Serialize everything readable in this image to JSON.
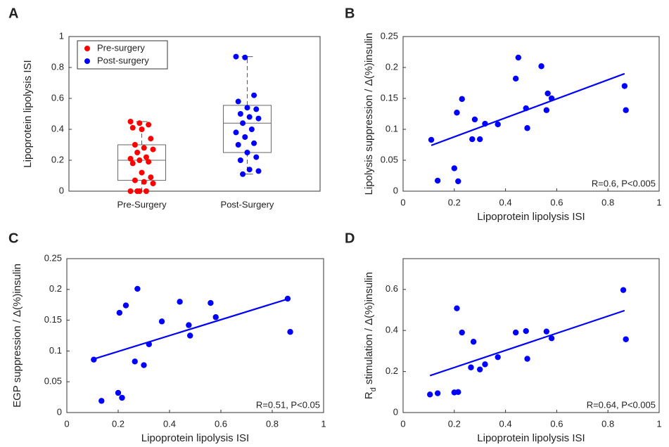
{
  "chart_data": [
    {
      "type": "box",
      "label": "A",
      "ylabel": "Lipoprotein lipolysis ISI",
      "categories": [
        "Pre-Surgery",
        "Post-Surgery"
      ],
      "ylim": [
        0,
        1
      ],
      "yticks": [
        0,
        0.2,
        0.4,
        0.6,
        0.8,
        1
      ],
      "legend": "upper-left",
      "series": [
        {
          "name": "Pre-surgery",
          "color": "#ff0000",
          "values": [
            0.45,
            0.44,
            0.43,
            0.41,
            0.4,
            0.34,
            0.3,
            0.28,
            0.27,
            0.25,
            0.22,
            0.21,
            0.2,
            0.19,
            0.18,
            0.12,
            0.09,
            0.07,
            0.06,
            0.05,
            0,
            0,
            0,
            0
          ],
          "box": {
            "min": 0,
            "q1": 0.07,
            "median": 0.2,
            "q3": 0.3,
            "max": 0.45
          }
        },
        {
          "name": "Post-surgery",
          "color": "#0000ff",
          "values": [
            0.87,
            0.865,
            0.62,
            0.58,
            0.54,
            0.53,
            0.5,
            0.48,
            0.47,
            0.44,
            0.4,
            0.38,
            0.35,
            0.31,
            0.3,
            0.25,
            0.22,
            0.2,
            0.14,
            0.13,
            0.11
          ],
          "box": {
            "min": 0.11,
            "q1": 0.25,
            "median": 0.44,
            "q3": 0.555,
            "max": 0.87
          }
        }
      ]
    },
    {
      "type": "scatter",
      "label": "B",
      "ylabel": "Lipolysis suppression / Δ(%)insulin",
      "xlabel": "Lipoprotein lipolysis ISI",
      "annotation": "R=0.6, P<0.005",
      "color": "#0000ff",
      "xlim": [
        0,
        1
      ],
      "xticks": [
        0,
        0.2,
        0.4,
        0.6,
        0.8,
        1
      ],
      "ylim": [
        0,
        0.25
      ],
      "yticks": [
        0,
        0.05,
        0.1,
        0.15,
        0.2,
        0.25
      ],
      "x": [
        0.11,
        0.135,
        0.2,
        0.21,
        0.215,
        0.23,
        0.27,
        0.28,
        0.3,
        0.32,
        0.37,
        0.44,
        0.45,
        0.48,
        0.485,
        0.54,
        0.56,
        0.565,
        0.58,
        0.865,
        0.87
      ],
      "values": [
        0.083,
        0.017,
        0.037,
        0.127,
        0.016,
        0.149,
        0.084,
        0.116,
        0.084,
        0.109,
        0.108,
        0.182,
        0.216,
        0.134,
        0.102,
        0.202,
        0.131,
        0.158,
        0.15,
        0.17,
        0.131
      ],
      "fit": {
        "x": [
          0.11,
          0.865
        ],
        "y": [
          0.074,
          0.19
        ]
      }
    },
    {
      "type": "scatter",
      "label": "C",
      "ylabel": "EGP suppression / Δ(%)insulin",
      "xlabel": "Lipoprotein lipolysis ISI",
      "annotation": "R=0.51, P<0.05",
      "color": "#0000ff",
      "xlim": [
        0,
        1
      ],
      "xticks": [
        0,
        0.2,
        0.4,
        0.6,
        0.8,
        1
      ],
      "ylim": [
        0,
        0.25
      ],
      "yticks": [
        0,
        0.05,
        0.1,
        0.15,
        0.2,
        0.25
      ],
      "x": [
        0.105,
        0.135,
        0.2,
        0.205,
        0.215,
        0.23,
        0.265,
        0.275,
        0.3,
        0.32,
        0.37,
        0.44,
        0.475,
        0.48,
        0.56,
        0.58,
        0.86,
        0.87
      ],
      "values": [
        0.086,
        0.019,
        0.032,
        0.162,
        0.024,
        0.174,
        0.083,
        0.201,
        0.077,
        0.111,
        0.148,
        0.18,
        0.142,
        0.125,
        0.178,
        0.155,
        0.185,
        0.131
      ],
      "fit": {
        "x": [
          0.105,
          0.865
        ],
        "y": [
          0.087,
          0.185
        ]
      }
    },
    {
      "type": "scatter",
      "label": "D",
      "ylabel": [
        {
          "text": "R"
        },
        {
          "text": "d",
          "sub": true
        },
        {
          "text": " stimulation / Δ(%)insulin"
        }
      ],
      "xlabel": "Lipoprotein lipolysis ISI",
      "annotation": "R=0.64, P<0.005",
      "color": "#0000ff",
      "xlim": [
        0,
        1
      ],
      "xticks": [
        0,
        0.2,
        0.4,
        0.6,
        0.8,
        1
      ],
      "ylim": [
        0,
        0.75
      ],
      "yticks": [
        0,
        0.2,
        0.4,
        0.6
      ],
      "x": [
        0.105,
        0.135,
        0.2,
        0.21,
        0.215,
        0.23,
        0.265,
        0.275,
        0.3,
        0.32,
        0.37,
        0.44,
        0.48,
        0.485,
        0.56,
        0.58,
        0.86,
        0.87
      ],
      "values": [
        0.088,
        0.094,
        0.098,
        0.508,
        0.1,
        0.39,
        0.22,
        0.345,
        0.21,
        0.235,
        0.27,
        0.39,
        0.397,
        0.262,
        0.395,
        0.362,
        0.597,
        0.357
      ],
      "fit": {
        "x": [
          0.105,
          0.865
        ],
        "y": [
          0.18,
          0.497
        ]
      }
    }
  ]
}
